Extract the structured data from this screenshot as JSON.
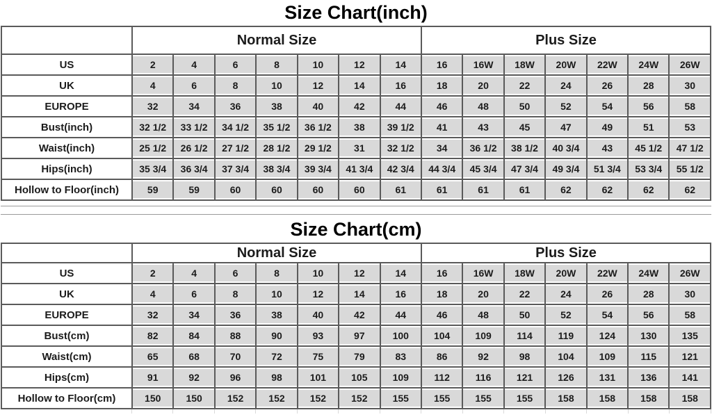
{
  "colors": {
    "cell_bg": "#d9d9d9",
    "grid_border": "#5a5a5a",
    "faint_grid": "#d9d9d9",
    "title_text": "#000000"
  },
  "layout_note": "two stacked size tables",
  "tables": [
    {
      "id": "inch",
      "title": "Size Chart(inch)",
      "groups": [
        {
          "label": "Normal Size",
          "span": 7
        },
        {
          "label": "Plus Size",
          "span": 7
        }
      ],
      "rows": [
        {
          "label": "US",
          "values": [
            "2",
            "4",
            "6",
            "8",
            "10",
            "12",
            "14",
            "16",
            "16W",
            "18W",
            "20W",
            "22W",
            "24W",
            "26W"
          ]
        },
        {
          "label": "UK",
          "values": [
            "4",
            "6",
            "8",
            "10",
            "12",
            "14",
            "16",
            "18",
            "20",
            "22",
            "24",
            "26",
            "28",
            "30"
          ]
        },
        {
          "label": "EUROPE",
          "values": [
            "32",
            "34",
            "36",
            "38",
            "40",
            "42",
            "44",
            "46",
            "48",
            "50",
            "52",
            "54",
            "56",
            "58"
          ]
        },
        {
          "label": "Bust(inch)",
          "values": [
            "32 1/2",
            "33 1/2",
            "34 1/2",
            "35 1/2",
            "36 1/2",
            "38",
            "39 1/2",
            "41",
            "43",
            "45",
            "47",
            "49",
            "51",
            "53"
          ]
        },
        {
          "label": "Waist(inch)",
          "values": [
            "25 1/2",
            "26 1/2",
            "27 1/2",
            "28 1/2",
            "29 1/2",
            "31",
            "32 1/2",
            "34",
            "36 1/2",
            "38 1/2",
            "40 3/4",
            "43",
            "45 1/2",
            "47 1/2"
          ]
        },
        {
          "label": "Hips(inch)",
          "values": [
            "35 3/4",
            "36 3/4",
            "37 3/4",
            "38 3/4",
            "39 3/4",
            "41 3/4",
            "42 3/4",
            "44 3/4",
            "45 3/4",
            "47 3/4",
            "49 3/4",
            "51 3/4",
            "53 3/4",
            "55 1/2"
          ]
        },
        {
          "label": "Hollow to Floor(inch)",
          "values": [
            "59",
            "59",
            "60",
            "60",
            "60",
            "60",
            "61",
            "61",
            "61",
            "61",
            "62",
            "62",
            "62",
            "62"
          ]
        }
      ]
    },
    {
      "id": "cm",
      "title": "Size Chart(cm)",
      "groups": [
        {
          "label": "Normal Size",
          "span": 7
        },
        {
          "label": "Plus Size",
          "span": 7
        }
      ],
      "rows": [
        {
          "label": "US",
          "values": [
            "2",
            "4",
            "6",
            "8",
            "10",
            "12",
            "14",
            "16",
            "16W",
            "18W",
            "20W",
            "22W",
            "24W",
            "26W"
          ]
        },
        {
          "label": "UK",
          "values": [
            "4",
            "6",
            "8",
            "10",
            "12",
            "14",
            "16",
            "18",
            "20",
            "22",
            "24",
            "26",
            "28",
            "30"
          ]
        },
        {
          "label": "EUROPE",
          "values": [
            "32",
            "34",
            "36",
            "38",
            "40",
            "42",
            "44",
            "46",
            "48",
            "50",
            "52",
            "54",
            "56",
            "58"
          ]
        },
        {
          "label": "Bust(cm)",
          "values": [
            "82",
            "84",
            "88",
            "90",
            "93",
            "97",
            "100",
            "104",
            "109",
            "114",
            "119",
            "124",
            "130",
            "135"
          ]
        },
        {
          "label": "Waist(cm)",
          "values": [
            "65",
            "68",
            "70",
            "72",
            "75",
            "79",
            "83",
            "86",
            "92",
            "98",
            "104",
            "109",
            "115",
            "121"
          ]
        },
        {
          "label": "Hips(cm)",
          "values": [
            "91",
            "92",
            "96",
            "98",
            "101",
            "105",
            "109",
            "112",
            "116",
            "121",
            "126",
            "131",
            "136",
            "141"
          ]
        },
        {
          "label": "Hollow to Floor(cm)",
          "values": [
            "150",
            "150",
            "152",
            "152",
            "152",
            "152",
            "155",
            "155",
            "155",
            "155",
            "158",
            "158",
            "158",
            "158"
          ]
        }
      ]
    }
  ]
}
